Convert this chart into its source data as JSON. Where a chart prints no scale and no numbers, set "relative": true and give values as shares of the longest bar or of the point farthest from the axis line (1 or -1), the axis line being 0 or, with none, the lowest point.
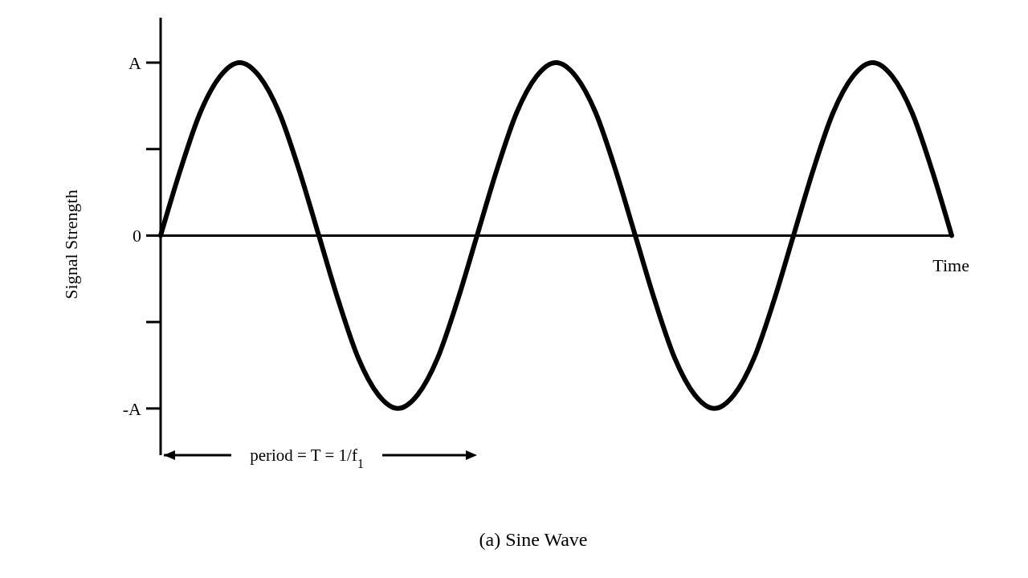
{
  "chart_data": {
    "type": "line",
    "title": "(a) Sine Wave",
    "xlabel": "Time",
    "ylabel": "Signal Strength",
    "annotations": [
      "period = T = 1/f$_{1}$",
      "A",
      "0",
      "-A"
    ],
    "relative": true,
    "categories": [
      null,
      null,
      null,
      null,
      null,
      null,
      null,
      null,
      null,
      null,
      null,
      null,
      null,
      null,
      null,
      null,
      null,
      null,
      null,
      null,
      null,
      null,
      null,
      null,
      null,
      null,
      null,
      null,
      null,
      null,
      null,
      null,
      null,
      null,
      null,
      null,
      null,
      null,
      null,
      null,
      null
    ],
    "series": [
      {
        "color": "#000000",
        "values": [
          0,
          0.38,
          0.71,
          0.92,
          1,
          0.92,
          0.71,
          0.38,
          0,
          -0.38,
          -0.71,
          -0.92,
          -1,
          -0.92,
          -0.71,
          -0.38,
          0,
          0.38,
          0.71,
          0.92,
          1,
          0.92,
          0.71,
          0.38,
          0,
          -0.38,
          -0.71,
          -0.92,
          -1,
          -0.92,
          -0.71,
          -0.38,
          0,
          0.38,
          0.71,
          0.92,
          1,
          0.92,
          0.71,
          0.38,
          0
        ]
      }
    ],
    "marker": "none",
    "line_style": "solid"
  }
}
